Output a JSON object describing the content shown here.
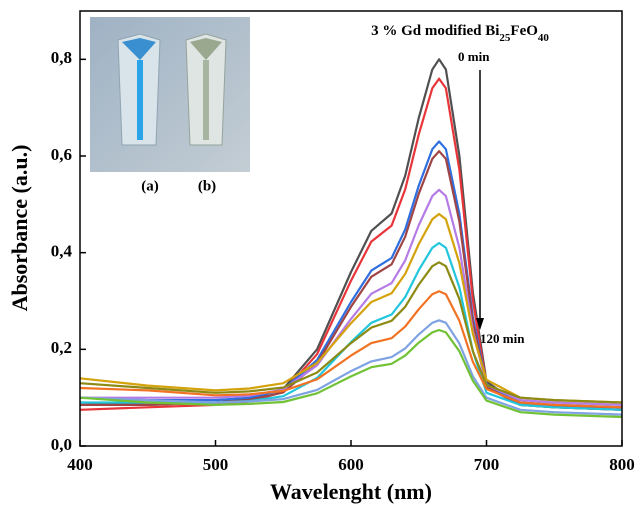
{
  "chart_data": {
    "type": "line",
    "title": [
      "3 % Gd modified Bi",
      "25",
      "FeO",
      "40"
    ],
    "x_label": "Wavelenght (nm)",
    "y_label": "Absorbance (a.u.)",
    "annotations": [
      "0 min",
      "120 min",
      "(a)",
      "(b)"
    ],
    "x": [
      400,
      450,
      500,
      525,
      550,
      575,
      600,
      615,
      630,
      640,
      650,
      660,
      665,
      670,
      680,
      690,
      700,
      725,
      750,
      800
    ],
    "series": [
      {
        "color": "#505050",
        "values": [
          0.09,
          0.085,
          0.09,
          0.097,
          0.118,
          0.2,
          0.36,
          0.445,
          0.481,
          0.559,
          0.679,
          0.779,
          0.8,
          0.779,
          0.6,
          0.317,
          0.133,
          0.085,
          0.08,
          0.075
        ]
      },
      {
        "color": "#e8353a",
        "values": [
          0.075,
          0.08,
          0.085,
          0.092,
          0.112,
          0.19,
          0.342,
          0.423,
          0.456,
          0.531,
          0.645,
          0.74,
          0.76,
          0.74,
          0.571,
          0.301,
          0.126,
          0.085,
          0.082,
          0.08
        ]
      },
      {
        "color": "#2f6fe0",
        "values": [
          0.1,
          0.095,
          0.095,
          0.1,
          0.116,
          0.178,
          0.298,
          0.363,
          0.389,
          0.448,
          0.539,
          0.614,
          0.63,
          0.614,
          0.48,
          0.266,
          0.127,
          0.09,
          0.085,
          0.08
        ]
      },
      {
        "color": "#a04545",
        "values": [
          0.085,
          0.085,
          0.09,
          0.095,
          0.111,
          0.171,
          0.288,
          0.35,
          0.376,
          0.433,
          0.522,
          0.594,
          0.61,
          0.594,
          0.464,
          0.256,
          0.121,
          0.085,
          0.08,
          0.075
        ]
      },
      {
        "color": "#b57be6",
        "values": [
          0.1,
          0.1,
          0.1,
          0.104,
          0.117,
          0.167,
          0.263,
          0.315,
          0.337,
          0.384,
          0.457,
          0.517,
          0.53,
          0.517,
          0.41,
          0.238,
          0.126,
          0.095,
          0.09,
          0.085
        ]
      },
      {
        "color": "#d4a20a",
        "values": [
          0.14,
          0.125,
          0.115,
          0.119,
          0.13,
          0.172,
          0.254,
          0.298,
          0.316,
          0.356,
          0.418,
          0.469,
          0.48,
          0.469,
          0.378,
          0.232,
          0.137,
          0.1,
          0.095,
          0.09
        ]
      },
      {
        "color": "#22c6dc",
        "values": [
          0.09,
          0.09,
          0.09,
          0.093,
          0.103,
          0.141,
          0.215,
          0.255,
          0.272,
          0.308,
          0.364,
          0.41,
          0.42,
          0.41,
          0.328,
          0.196,
          0.11,
          0.085,
          0.08,
          0.075
        ]
      },
      {
        "color": "#8c8a14",
        "values": [
          0.13,
          0.12,
          0.11,
          0.113,
          0.121,
          0.152,
          0.213,
          0.245,
          0.259,
          0.288,
          0.334,
          0.372,
          0.38,
          0.372,
          0.304,
          0.196,
          0.126,
          0.1,
          0.095,
          0.09
        ]
      },
      {
        "color": "#f07222",
        "values": [
          0.12,
          0.115,
          0.105,
          0.107,
          0.114,
          0.138,
          0.187,
          0.213,
          0.223,
          0.247,
          0.283,
          0.314,
          0.32,
          0.314,
          0.259,
          0.174,
          0.118,
          0.09,
          0.085,
          0.08
        ]
      },
      {
        "color": "#7fa2e2",
        "values": [
          0.1,
          0.095,
          0.09,
          0.092,
          0.097,
          0.116,
          0.155,
          0.175,
          0.184,
          0.202,
          0.231,
          0.255,
          0.26,
          0.255,
          0.212,
          0.144,
          0.1,
          0.075,
          0.07,
          0.065
        ]
      },
      {
        "color": "#72c236",
        "values": [
          0.1,
          0.09,
          0.085,
          0.087,
          0.091,
          0.109,
          0.144,
          0.163,
          0.17,
          0.187,
          0.214,
          0.235,
          0.24,
          0.235,
          0.196,
          0.135,
          0.094,
          0.07,
          0.065,
          0.06
        ]
      }
    ],
    "xlim": [
      400,
      800
    ],
    "xticks": [
      400,
      500,
      600,
      700,
      800
    ],
    "ylim": [
      0,
      0.9
    ],
    "yticks": [
      {
        "value": 0,
        "label": "0,0"
      },
      {
        "value": 0.2,
        "label": "0,2"
      },
      {
        "value": 0.4,
        "label": "0,4"
      },
      {
        "value": 0.6,
        "label": "0,6"
      },
      {
        "value": 0.8,
        "label": "0,8"
      }
    ]
  }
}
